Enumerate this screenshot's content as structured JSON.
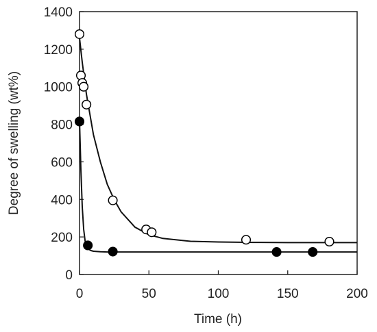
{
  "chart_data": {
    "type": "scatter",
    "title": "",
    "xlabel": "Time  (h)",
    "ylabel": "Degree of swelling  (wt%)",
    "xlim": [
      0,
      200
    ],
    "ylim": [
      0,
      1400
    ],
    "xticks": [
      0,
      50,
      100,
      150,
      200
    ],
    "yticks": [
      0,
      200,
      400,
      600,
      800,
      1000,
      1200,
      1400
    ],
    "grid": false,
    "series": [
      {
        "marker": "open-circle",
        "x": [
          0,
          1,
          2,
          3,
          5,
          24,
          48,
          52,
          120,
          180
        ],
        "y": [
          1280,
          1060,
          1020,
          1000,
          905,
          395,
          240,
          225,
          185,
          175
        ],
        "fit_curve": {
          "x": [
            0,
            2,
            5,
            10,
            15,
            20,
            25,
            30,
            40,
            50,
            60,
            80,
            100,
            125,
            150,
            175,
            200
          ],
          "y": [
            1260,
            1130,
            960,
            745,
            600,
            480,
            398,
            333,
            252,
            212,
            192,
            177,
            173,
            171,
            170,
            170,
            170
          ]
        }
      },
      {
        "marker": "filled-circle",
        "x": [
          0,
          6,
          24,
          142,
          168
        ],
        "y": [
          815,
          155,
          122,
          120,
          120
        ],
        "fit_curve": {
          "x": [
            0,
            1,
            2,
            3,
            4,
            5,
            6,
            8,
            10,
            15,
            20,
            40,
            100,
            200
          ],
          "y": [
            820,
            560,
            360,
            240,
            180,
            150,
            138,
            128,
            124,
            121,
            120,
            120,
            120,
            120
          ]
        }
      }
    ]
  }
}
